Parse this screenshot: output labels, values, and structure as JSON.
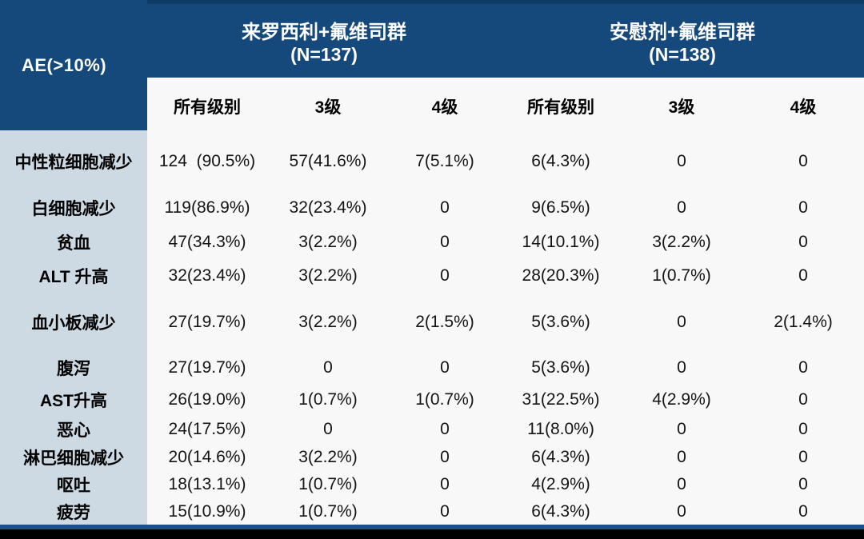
{
  "table": {
    "corner_label": "AE(>10%)",
    "groups": [
      {
        "title": "来罗西利+氟维司群",
        "n_label": "(N=137)"
      },
      {
        "title": "安慰剂+氟维司群",
        "n_label": "(N=138)"
      }
    ],
    "sub_headers": [
      "所有级别",
      "3级",
      "4级",
      "所有级别",
      "3级",
      "4级"
    ],
    "rows": [
      {
        "label": "中性粒细胞减少",
        "values": [
          "124  (90.5%)",
          "57(41.6%)",
          "7(5.1%)",
          "6(4.3%)",
          "0",
          "0"
        ]
      },
      {
        "label": "白细胞减少",
        "values": [
          "119(86.9%)",
          "32(23.4%)",
          "0",
          "9(6.5%)",
          "0",
          "0"
        ]
      },
      {
        "label": "贫血",
        "values": [
          "47(34.3%)",
          "3(2.2%)",
          "0",
          "14(10.1%)",
          "3(2.2%)",
          "0"
        ]
      },
      {
        "label": "ALT 升高",
        "values": [
          "32(23.4%)",
          "3(2.2%)",
          "0",
          "28(20.3%)",
          "1(0.7%)",
          "0"
        ]
      },
      {
        "label": "血小板减少",
        "values": [
          "27(19.7%)",
          "3(2.2%)",
          "2(1.5%)",
          "5(3.6%)",
          "0",
          "2(1.4%)"
        ]
      },
      {
        "label": "腹泻",
        "values": [
          "27(19.7%)",
          "0",
          "0",
          "5(3.6%)",
          "0",
          "0"
        ]
      },
      {
        "label": "AST升高",
        "values": [
          "26(19.0%)",
          "1(0.7%)",
          "1(0.7%)",
          "31(22.5%)",
          "4(2.9%)",
          "0"
        ]
      },
      {
        "label": "恶心",
        "values": [
          "24(17.5%)",
          "0",
          "0",
          "11(8.0%)",
          "0",
          "0"
        ]
      },
      {
        "label": "淋巴细胞减少",
        "values": [
          "20(14.6%)",
          "3(2.2%)",
          "0",
          "6(4.3%)",
          "0",
          "0"
        ]
      },
      {
        "label": "呕吐",
        "values": [
          "18(13.1%)",
          "1(0.7%)",
          "0",
          "4(2.9%)",
          "0",
          "0"
        ]
      },
      {
        "label": "疲劳",
        "values": [
          "15(10.9%)",
          "1(0.7%)",
          "0",
          "6(4.3%)",
          "0",
          "0"
        ]
      }
    ],
    "colors": {
      "header_blue": "#15497B",
      "top_strip": "#0F3C64",
      "label_column_bg": "#CDDAE3",
      "data_bg": "#F8F8F8",
      "bottom_line": "#1D5183",
      "bottom_bar": "#000000",
      "header_text": "#FFFFFF",
      "body_text": "#141414"
    }
  }
}
